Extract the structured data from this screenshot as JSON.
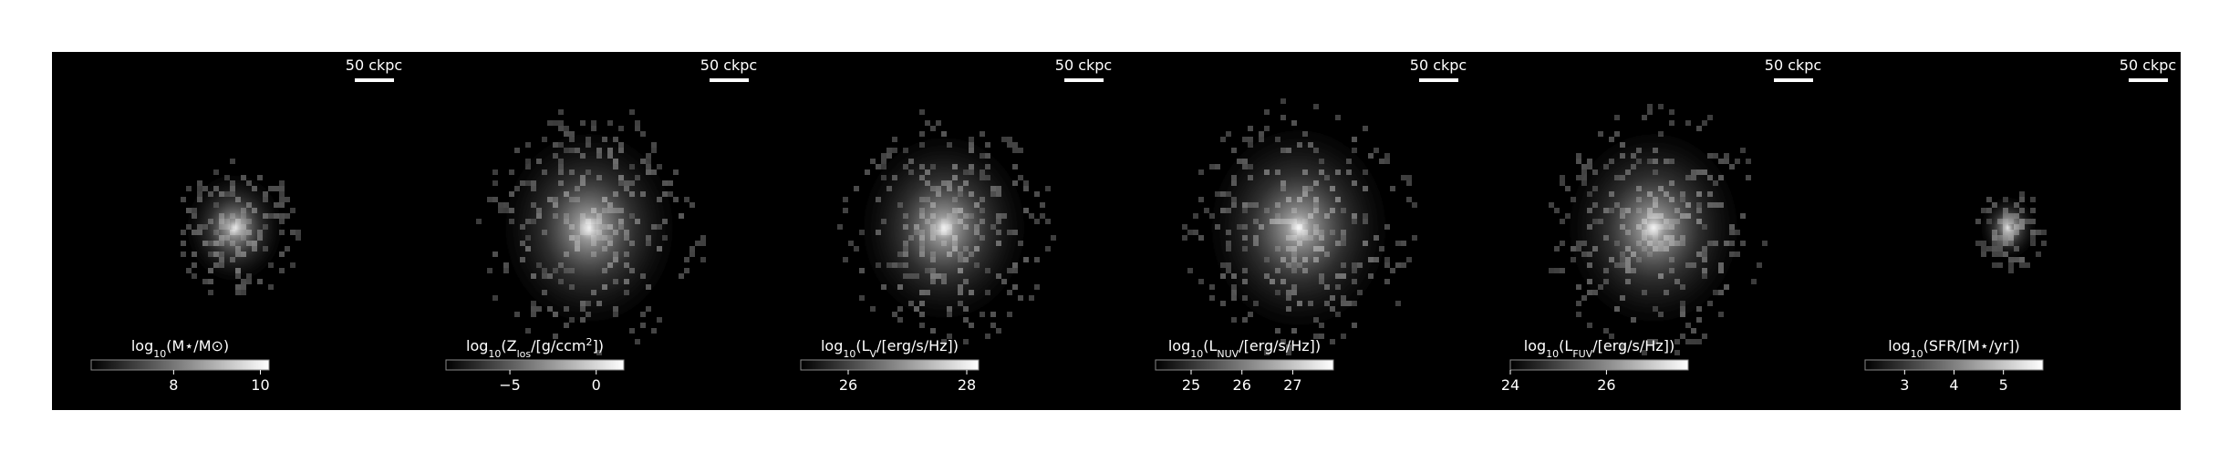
{
  "chart_data": [
    {
      "type": "image",
      "scalebar_label": "50 ckpc",
      "colorbar_label": [
        "log",
        {
          "sub": "10"
        },
        "(M⋆/M⊙)"
      ],
      "clim": [
        6.1,
        10.2
      ],
      "cticks": [
        8,
        10
      ]
    },
    {
      "type": "image",
      "scalebar_label": "50 ckpc",
      "colorbar_label": [
        "log",
        {
          "sub": "10"
        },
        "(Z",
        {
          "sub": "los"
        },
        "/[g/ccm",
        {
          "sup": "2"
        },
        "])"
      ],
      "clim": [
        -8.7,
        1.6
      ],
      "cticks": [
        {
          "value": -5,
          "label": "−5"
        },
        0
      ]
    },
    {
      "type": "image",
      "scalebar_label": "50 ckpc",
      "colorbar_label": [
        "log",
        {
          "sub": "10"
        },
        "(L",
        {
          "sub": "V"
        },
        "/[erg/s/Hz])"
      ],
      "clim": [
        25.2,
        28.2
      ],
      "cticks": [
        26,
        28
      ]
    },
    {
      "type": "image",
      "scalebar_label": "50 ckpc",
      "colorbar_label": [
        "log",
        {
          "sub": "10"
        },
        "(L",
        {
          "sub": "NUV"
        },
        "/[erg/s/Hz])"
      ],
      "clim": [
        24.3,
        27.8
      ],
      "cticks": [
        25,
        26,
        27
      ]
    },
    {
      "type": "image",
      "scalebar_label": "50 ckpc",
      "colorbar_label": [
        "log",
        {
          "sub": "10"
        },
        "(L",
        {
          "sub": "FUV"
        },
        "/[erg/s/Hz])"
      ],
      "clim": [
        24.0,
        27.7
      ],
      "cticks": [
        24,
        26
      ]
    },
    {
      "type": "image",
      "scalebar_label": "50 ckpc",
      "colorbar_label": [
        "log",
        {
          "sub": "10"
        },
        "(SFR/[M⋆/yr])"
      ],
      "clim": [
        2.2,
        5.8
      ],
      "cticks": [
        3,
        4,
        5
      ]
    }
  ]
}
